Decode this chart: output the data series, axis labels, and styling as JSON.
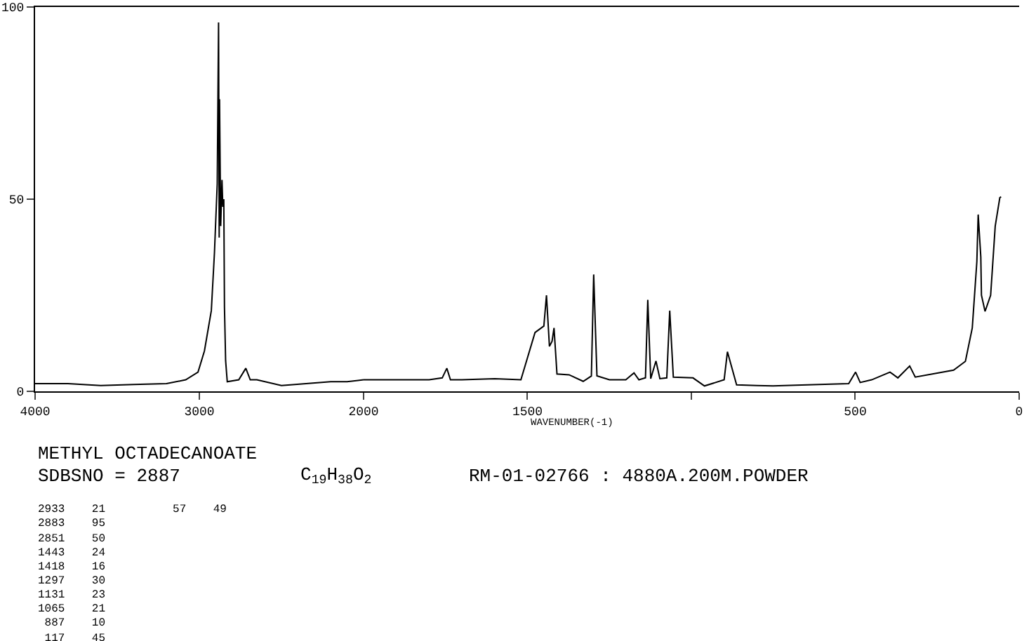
{
  "chart_data": [
    {
      "type": "line",
      "title": "METHYL OCTADECANOATE",
      "subtitle": "SDBSNO = 2887",
      "annotations": [
        "C$_{19}$H$_{38}$O$_{2}$",
        "RM-01-02766 : 4880A.200M.POWDER",
        "2933    21          57    49",
        "2883    95",
        "2851    50",
        "1443    24",
        "1418    16",
        "1297    30",
        "1131    23",
        "1065    21",
        " 887    10",
        " 117    45"
      ],
      "xlim": [
        4000,
        2000
      ],
      "xticks": [
        4000,
        3000,
        2000
      ],
      "ylim": [
        0,
        100
      ],
      "yticks": [
        0,
        50,
        100
      ],
      "series": [
        {
          "color": "#000000",
          "x": [
            4000,
            3800,
            3600,
            3400,
            3200,
            3083,
            3008,
            2969,
            2927,
            2908,
            2891,
            2883,
            2879,
            2877,
            2870,
            2862,
            2857,
            2851,
            2847,
            2840,
            2830,
            2760,
            2717,
            2690,
            2650,
            2500,
            2350,
            2200,
            2100,
            2000
          ],
          "values": [
            2,
            2,
            1.5,
            1.8,
            2,
            3,
            5,
            10.5,
            21,
            36,
            54,
            96,
            40,
            76,
            43,
            55,
            48,
            50,
            22,
            8,
            2.5,
            3,
            6,
            3,
            3,
            1.5,
            2,
            2.5,
            2.5,
            3
          ]
        }
      ]
    },
    {
      "type": "line",
      "xlabel": "WAVENUMBER(-1)",
      "tick_labels": "x",
      "xlim": [
        2000,
        0
      ],
      "xticks": [
        {
          "value": 2000,
          "label": null
        },
        1500,
        {
          "value": 1000,
          "label": null
        },
        500,
        0
      ],
      "ylim": [
        0,
        100
      ],
      "yticks": [
        0,
        50,
        100
      ],
      "series": [
        {
          "color": "#000000",
          "x": [
            2000,
            1900,
            1800,
            1760,
            1746,
            1735,
            1700,
            1600,
            1520,
            1477,
            1450,
            1442,
            1433,
            1425,
            1419,
            1410,
            1373,
            1330,
            1305,
            1298,
            1288,
            1250,
            1200,
            1175,
            1160,
            1140,
            1133,
            1124,
            1108,
            1096,
            1075,
            1066,
            1055,
            995,
            960,
            900,
            890,
            862,
            800,
            751,
            611,
            520,
            499,
            485,
            450,
            394,
            370,
            334,
            317,
            247,
            200,
            164,
            143,
            129,
            125,
            117,
            115,
            104,
            87,
            73,
            59,
            55
          ],
          "values": [
            3,
            3,
            3,
            3.5,
            6,
            3,
            3,
            3.3,
            3,
            15.3,
            17,
            25,
            11.7,
            13,
            16.5,
            4.5,
            4.3,
            2.6,
            4,
            30.4,
            4,
            3,
            3,
            4.8,
            3,
            3.5,
            23.8,
            3.3,
            7.9,
            3.3,
            3.5,
            21,
            3.7,
            3.5,
            1.4,
            3,
            10.3,
            1.7,
            1.5,
            1.4,
            1.8,
            2,
            5,
            2.3,
            3,
            5,
            3.5,
            6.6,
            3.7,
            4.8,
            5.5,
            7.8,
            16.5,
            33.8,
            46,
            35,
            25,
            20.8,
            25,
            43,
            50.4,
            50.6
          ]
        }
      ]
    }
  ]
}
